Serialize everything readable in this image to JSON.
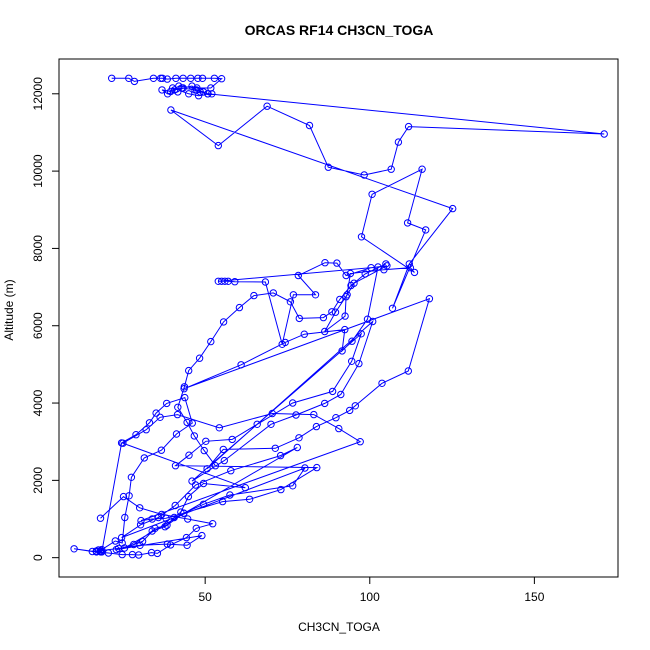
{
  "chart_data": {
    "type": "line",
    "title": "ORCAS RF14 CH3CN_TOGA",
    "xlabel": "CH3CN_TOGA",
    "ylabel": "Altitude (m)",
    "xlim": [
      5.6,
      175.4
    ],
    "ylim": [
      -500,
      12900
    ],
    "xticks": [
      50,
      100,
      150
    ],
    "yticks": [
      0,
      2000,
      4000,
      6000,
      8000,
      10000,
      12000
    ],
    "marker": "open-circle",
    "grid": false,
    "legend": "none",
    "colors": {
      "series": "#0000ff",
      "axes": "#000000",
      "background": "#ffffff"
    },
    "series": [
      {
        "x": [
          21.6,
          26.8,
          28.5,
          34.3,
          36.5,
          37.0,
          38.5,
          41.1,
          43.3,
          45.6,
          47.8,
          49.2,
          52.8,
          55.0,
          51.7,
          47.5,
          42.0,
          39.5,
          36.9,
          38.6,
          41.7,
          43.3,
          46.0,
          47.4,
          48.5,
          50.8,
          52.0,
          48.0,
          45.0,
          40.1,
          40.7,
          42.9,
          46.9,
          49.5,
          50.8,
          171.2,
          111.8,
          108.7,
          106.5,
          98.3,
          87.4,
          81.7,
          68.8,
          54.0,
          39.6,
          125.2,
          112.0,
          106.9,
          117.0,
          111.5,
          115.9,
          100.7,
          97.5,
          113.6,
          112.3,
          104.3,
          94.1,
          93.1,
          89.6,
          86.3,
          92.5,
          92.8,
          95.2,
          105.2,
          100.4,
          92.8,
          90.0,
          86.4,
          78.3,
          83.5,
          76.8,
          73.4,
          68.3,
          59.0,
          57.0,
          56.0,
          55.0,
          54.0,
          102.5,
          99.3,
          94.6,
          91.6,
          92.4,
          80.1,
          74.3,
          60.9,
          43.6,
          118.1,
          111.7,
          103.7,
          95.6,
          93.9,
          89.7,
          83.8,
          78.5,
          71.3,
          55.5,
          50.6,
          100.9,
          96.7,
          91.2,
          86.3,
          77.6,
          70.0,
          55.8,
          46.0,
          97.4,
          94.5,
          88.7,
          76.6,
          65.8,
          58.2,
          50.2,
          45.1,
          41.0,
          83.9,
          73.0,
          63.5,
          55.3,
          43.5,
          38.1,
          33.9,
          30.5,
          97.1,
          90.6,
          83.0,
          70.4,
          54.3,
          41.6,
          36.3,
          32.1,
          25.0,
          62.2,
          49.5,
          44.9,
          42.6,
          40.6,
          38.4,
          34.8,
          31.0,
          25.5,
          78.0,
          72.9,
          57.8,
          47.1,
          40.9,
          35.8,
          30.4,
          24.6,
          80.3,
          76.6,
          57.5,
          49.5,
          43.5,
          37.8,
          33.9,
          28.3,
          23.0,
          49.0,
          44.5,
          38.5,
          30.2,
          23.7,
          18.2,
          15.7,
          10.2,
          17.0,
          20.6,
          24.8,
          27.9,
          29.8,
          33.7,
          35.5,
          39.5,
          44.3,
          47.3,
          52.3,
          44.7,
          36.8,
          30.1,
          25.2,
          18.2
        ],
        "y": [
          12400,
          12400,
          12320,
          12400,
          12400,
          12400,
          12380,
          12400,
          12400,
          12400,
          12400,
          12400,
          12400,
          12390,
          12150,
          12150,
          12200,
          12060,
          12100,
          12000,
          12050,
          12150,
          12200,
          12100,
          12050,
          12000,
          12000,
          11950,
          12000,
          12150,
          12100,
          12150,
          12100,
          12050,
          12000,
          10960,
          11150,
          10750,
          10050,
          9900,
          10100,
          11180,
          11680,
          10660,
          11580,
          9030,
          7600,
          6450,
          8480,
          8660,
          10050,
          9400,
          8300,
          7380,
          7500,
          7450,
          7350,
          6800,
          6350,
          5850,
          6250,
          6750,
          7100,
          7550,
          7500,
          7300,
          7620,
          7630,
          7300,
          6800,
          6800,
          5520,
          7130,
          7140,
          7150,
          7150,
          7150,
          7150,
          7520,
          6170,
          5600,
          5350,
          5900,
          5780,
          5570,
          4990,
          4370,
          6700,
          4830,
          4510,
          3930,
          3810,
          3620,
          3390,
          3100,
          2830,
          2800,
          2300,
          6110,
          5020,
          4220,
          3990,
          3690,
          3450,
          2510,
          1980,
          5790,
          5080,
          4300,
          4000,
          3450,
          3060,
          3010,
          2650,
          2380,
          2330,
          1760,
          1510,
          1450,
          1150,
          1020,
          1000,
          960,
          3000,
          3340,
          3700,
          3730,
          3360,
          3700,
          3630,
          3310,
          2960,
          1810,
          1920,
          1580,
          1180,
          1040,
          840,
          760,
          420,
          250,
          2850,
          2640,
          2250,
          1880,
          1350,
          1040,
          850,
          520,
          2320,
          1860,
          1620,
          1380,
          1150,
          800,
          690,
          340,
          210,
          570,
          320,
          350,
          320,
          240,
          180,
          160,
          230,
          150,
          120,
          80,
          80,
          70,
          130,
          110,
          330,
          520,
          760,
          880,
          1000,
          1120,
          1290,
          1580,
          1020
        ]
      },
      {
        "x": [
          18.3,
          17.6,
          18.1,
          16.9,
          18.6,
          22.7,
          24.8,
          25.6,
          26.9,
          27.6,
          31.5,
          36.7,
          41.3,
          46.1,
          43.8,
          38.3,
          35.1,
          33.1,
          29.0,
          24.6,
          18.6
        ],
        "y": [
          150,
          200,
          170,
          170,
          210,
          430,
          380,
          1040,
          1600,
          2080,
          2580,
          2780,
          3200,
          3480,
          4140,
          3990,
          3740,
          3490,
          3180,
          2970,
          150
        ]
      },
      {
        "x": [
          53.1,
          49.7,
          46.7,
          44.5,
          41.7,
          43.7,
          45.0,
          48.3,
          51.7,
          55.6,
          60.4,
          64.8,
          70.7,
          75.9,
          78.6,
          85.9,
          88.5,
          90.9,
          94.3,
          98.6,
          104.9
        ],
        "y": [
          2380,
          2770,
          3150,
          3500,
          3890,
          4420,
          4840,
          5160,
          5590,
          6100,
          6470,
          6780,
          6850,
          6620,
          6190,
          6210,
          6360,
          6680,
          7040,
          7340,
          7600
        ]
      }
    ]
  }
}
